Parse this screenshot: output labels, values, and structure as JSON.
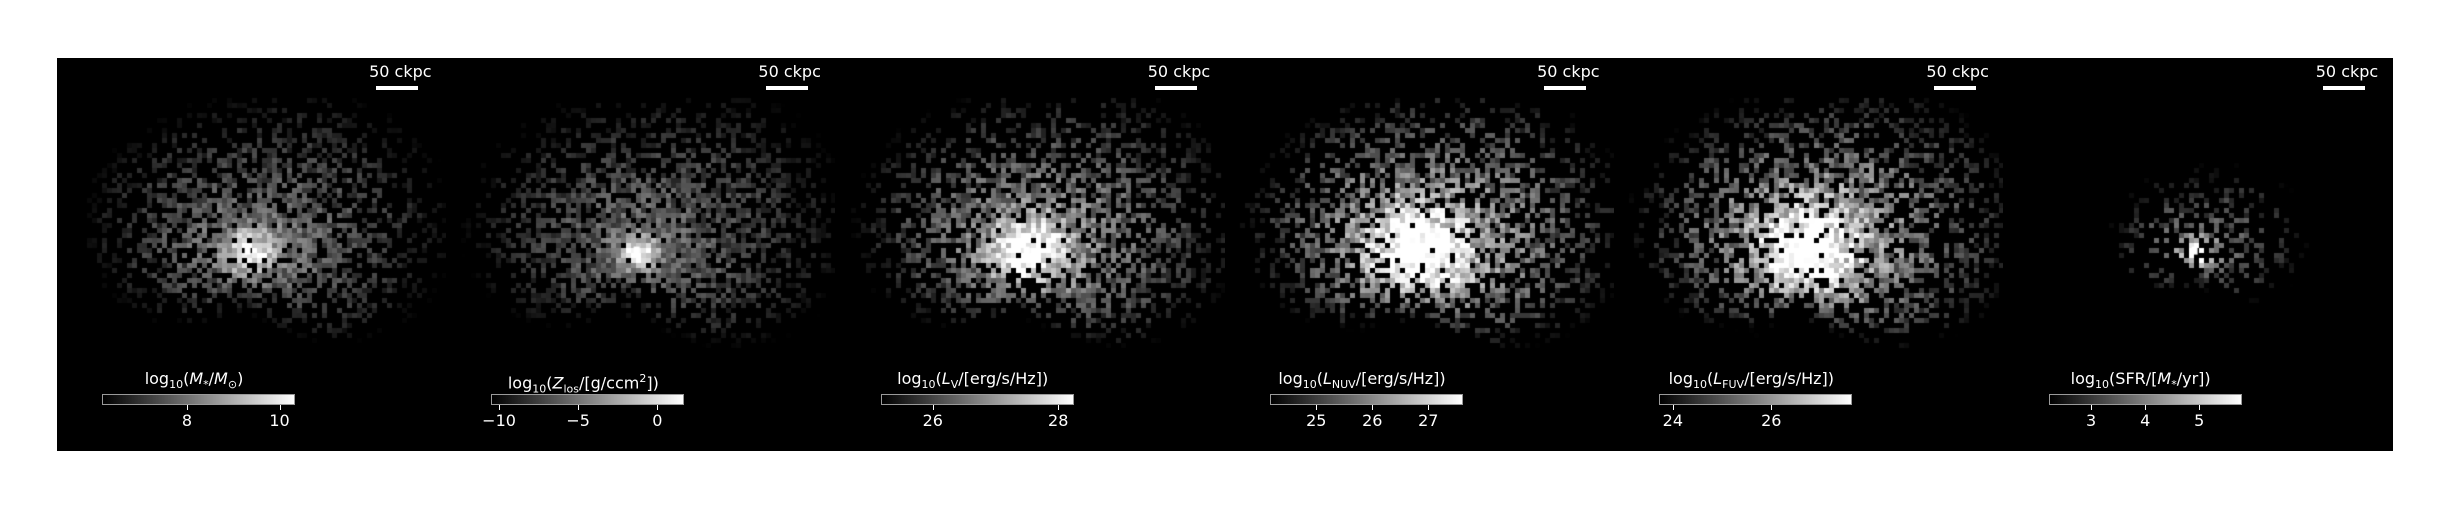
{
  "figure": {
    "panels": [
      {
        "id": "stellar-mass",
        "scale_label": "50 ckpc",
        "colorbar_label_html": "log<sub>10</sub>(<i>M</i><sub>*</sub>/<i>M</i><sub>⊙</sub>)",
        "ticks": [
          {
            "label": "8",
            "frac": 0.44
          },
          {
            "label": "10",
            "frac": 0.92
          }
        ],
        "image": {
          "spread": 0.9,
          "brightness": 0.55,
          "core": 1.0,
          "coreSize": 0.9,
          "density": 0.95,
          "size": 1.0
        }
      },
      {
        "id": "metal-column",
        "scale_label": "50 ckpc",
        "colorbar_label_html": "log<sub>10</sub>(<i>Z</i><sub>los</sub>/[g/ccm<sup>2</sup>])",
        "ticks": [
          {
            "label": "−10",
            "frac": 0.04
          },
          {
            "label": "−5",
            "frac": 0.45
          },
          {
            "label": "0",
            "frac": 0.86
          }
        ],
        "image": {
          "spread": 1.0,
          "brightness": 0.5,
          "core": 1.0,
          "coreSize": 0.7,
          "density": 1.0,
          "size": 1.05
        }
      },
      {
        "id": "v-band",
        "scale_label": "50 ckpc",
        "colorbar_label_html": "log<sub>10</sub>(<i>L</i><sub>V</sub>/[erg/s/Hz])",
        "ticks": [
          {
            "label": "26",
            "frac": 0.27
          },
          {
            "label": "28",
            "frac": 0.92
          }
        ],
        "image": {
          "spread": 1.0,
          "brightness": 0.7,
          "core": 1.0,
          "coreSize": 1.4,
          "density": 1.0,
          "size": 1.05
        }
      },
      {
        "id": "nuv",
        "scale_label": "50 ckpc",
        "colorbar_label_html": "log<sub>10</sub>(<i>L</i><sub>NUV</sub>/[erg/s/Hz])",
        "ticks": [
          {
            "label": "25",
            "frac": 0.24
          },
          {
            "label": "26",
            "frac": 0.53
          },
          {
            "label": "27",
            "frac": 0.82
          }
        ],
        "image": {
          "spread": 1.0,
          "brightness": 0.85,
          "core": 1.0,
          "coreSize": 1.8,
          "density": 1.0,
          "size": 1.05
        }
      },
      {
        "id": "fuv",
        "scale_label": "50 ckpc",
        "colorbar_label_html": "log<sub>10</sub>(<i>L</i><sub>FUV</sub>/[erg/s/Hz])",
        "ticks": [
          {
            "label": "24",
            "frac": 0.07
          },
          {
            "label": "26",
            "frac": 0.58
          }
        ],
        "image": {
          "spread": 1.0,
          "brightness": 0.85,
          "core": 1.0,
          "coreSize": 1.8,
          "density": 1.0,
          "size": 1.05
        }
      },
      {
        "id": "sfr",
        "scale_label": "50 ckpc",
        "colorbar_label_html": "log<sub>10</sub>(SFR/[<i>M</i><sub>*</sub>/yr])",
        "ticks": [
          {
            "label": "3",
            "frac": 0.22
          },
          {
            "label": "4",
            "frac": 0.5
          },
          {
            "label": "5",
            "frac": 0.78
          }
        ],
        "image": {
          "spread": 0.35,
          "brightness": 0.45,
          "core": 1.0,
          "coreSize": 0.6,
          "density": 0.6,
          "size": 0.55
        }
      }
    ]
  }
}
